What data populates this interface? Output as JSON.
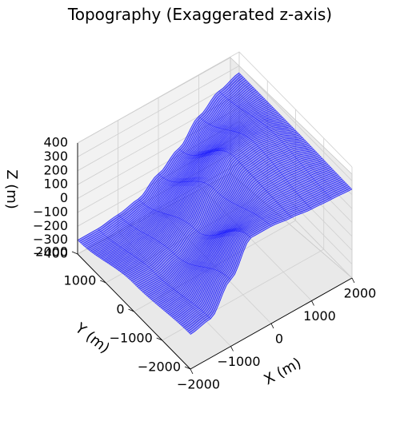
{
  "chart_data": {
    "type": "surface",
    "title": "Topography (Exaggerated z-axis)",
    "xlabel": "X (m)",
    "ylabel": "Y (m)",
    "zlabel": "Z (m)",
    "xlim": [
      -2000,
      2000
    ],
    "ylim": [
      -2000,
      2000
    ],
    "zlim": [
      -400,
      400
    ],
    "x_ticks": [
      "−2000",
      "−1000",
      "0",
      "1000",
      "2000"
    ],
    "y_ticks": [
      "−2000",
      "−1000",
      "0",
      "1000",
      "2000"
    ],
    "z_ticks": [
      "−400",
      "−300",
      "−200",
      "−100",
      "0",
      "100",
      "200",
      "300",
      "400"
    ],
    "surface_color": "#0000ff",
    "grid": true,
    "surface_x": [
      -2000,
      -1500,
      -1000,
      -500,
      0,
      500,
      1000,
      1500,
      2000
    ],
    "surface_y": [
      -2000,
      0,
      2000
    ],
    "surface_z": [
      [
        -150,
        -120,
        80,
        300,
        300,
        280,
        260,
        250,
        240
      ],
      [
        -200,
        -200,
        -150,
        -50,
        150,
        300,
        320,
        300,
        250
      ],
      [
        -300,
        -300,
        -280,
        -250,
        -150,
        -50,
        100,
        200,
        250
      ]
    ]
  }
}
